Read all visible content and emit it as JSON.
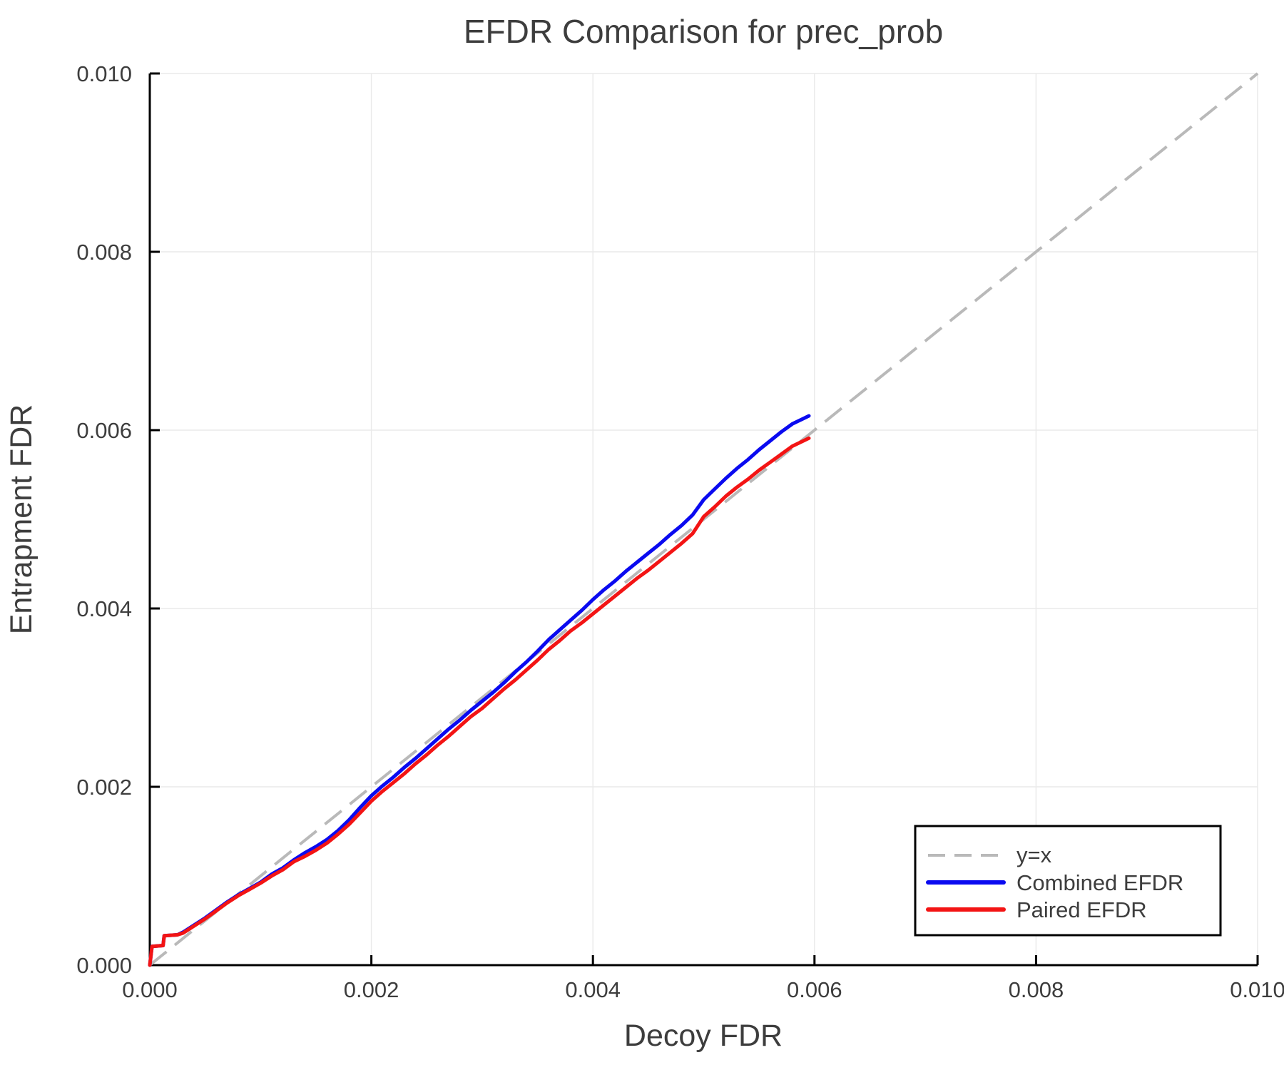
{
  "figure": {
    "title": "EFDR Comparison for prec_prob",
    "xlabel": "Decoy FDR",
    "ylabel": "Entrapment FDR"
  },
  "colors": {
    "text": "#3d3d3d",
    "axis": "#000000",
    "grid": "#eaeaea",
    "background": "#ffffff"
  },
  "chart_data": {
    "type": "line",
    "title": "EFDR Comparison for prec_prob",
    "xlabel": "Decoy FDR",
    "ylabel": "Entrapment FDR",
    "xlim": [
      0,
      0.01
    ],
    "ylim": [
      0,
      0.01
    ],
    "x_ticks": [
      0,
      0.002,
      0.004,
      0.006,
      0.008,
      0.01
    ],
    "y_ticks": [
      0,
      0.002,
      0.004,
      0.006,
      0.008,
      0.01
    ],
    "x_tick_labels": [
      "0.000",
      "0.002",
      "0.004",
      "0.006",
      "0.008",
      "0.010"
    ],
    "y_tick_labels": [
      "0.000",
      "0.002",
      "0.004",
      "0.006",
      "0.008",
      "0.010"
    ],
    "grid": true,
    "legend_position": "bottom-right",
    "reference_line": {
      "label": "y=x",
      "style": "dashed",
      "color": "#b9b9b9",
      "from": [
        0,
        0
      ],
      "to": [
        0.01,
        0.01
      ]
    },
    "series": [
      {
        "name": "Combined EFDR",
        "color": "#0a0af0",
        "points": [
          [
            0.0,
            0.0
          ],
          [
            2e-05,
            0.00021
          ],
          [
            0.00012,
            0.00022
          ],
          [
            0.00013,
            0.00033
          ],
          [
            0.00025,
            0.00034
          ],
          [
            0.0003,
            0.00037
          ],
          [
            0.0004,
            0.00045
          ],
          [
            0.0005,
            0.00053
          ],
          [
            0.0006,
            0.00062
          ],
          [
            0.0007,
            0.00071
          ],
          [
            0.0008,
            0.00079
          ],
          [
            0.0009,
            0.00086
          ],
          [
            0.001,
            0.00093
          ],
          [
            0.0011,
            0.00102
          ],
          [
            0.0012,
            0.00109
          ],
          [
            0.0013,
            0.00118
          ],
          [
            0.0014,
            0.00126
          ],
          [
            0.0015,
            0.00133
          ],
          [
            0.0016,
            0.00141
          ],
          [
            0.0017,
            0.00151
          ],
          [
            0.0018,
            0.00163
          ],
          [
            0.0019,
            0.00177
          ],
          [
            0.002,
            0.0019
          ],
          [
            0.0021,
            0.00201
          ],
          [
            0.0022,
            0.00211
          ],
          [
            0.0023,
            0.00222
          ],
          [
            0.0024,
            0.00232
          ],
          [
            0.0025,
            0.00243
          ],
          [
            0.0026,
            0.00254
          ],
          [
            0.0027,
            0.00265
          ],
          [
            0.0028,
            0.00275
          ],
          [
            0.0029,
            0.00286
          ],
          [
            0.003,
            0.00296
          ],
          [
            0.0031,
            0.00306
          ],
          [
            0.0032,
            0.00317
          ],
          [
            0.0033,
            0.00329
          ],
          [
            0.0034,
            0.0034
          ],
          [
            0.0035,
            0.00352
          ],
          [
            0.0036,
            0.00365
          ],
          [
            0.0037,
            0.00376
          ],
          [
            0.0038,
            0.00387
          ],
          [
            0.0039,
            0.00398
          ],
          [
            0.004,
            0.0041
          ],
          [
            0.0041,
            0.00421
          ],
          [
            0.0042,
            0.00431
          ],
          [
            0.0043,
            0.00442
          ],
          [
            0.0044,
            0.00452
          ],
          [
            0.0045,
            0.00462
          ],
          [
            0.0046,
            0.00472
          ],
          [
            0.0047,
            0.00483
          ],
          [
            0.0048,
            0.00493
          ],
          [
            0.0049,
            0.00505
          ],
          [
            0.005,
            0.00522
          ],
          [
            0.0051,
            0.00534
          ],
          [
            0.0052,
            0.00546
          ],
          [
            0.0053,
            0.00557
          ],
          [
            0.0054,
            0.00567
          ],
          [
            0.0055,
            0.00578
          ],
          [
            0.0056,
            0.00588
          ],
          [
            0.0057,
            0.00598
          ],
          [
            0.0058,
            0.00607
          ],
          [
            0.0059,
            0.00613
          ],
          [
            0.00595,
            0.00616
          ]
        ]
      },
      {
        "name": "Paired EFDR",
        "color": "#f31414",
        "points": [
          [
            0.0,
            0.0
          ],
          [
            2e-05,
            0.00021
          ],
          [
            0.00012,
            0.00022
          ],
          [
            0.00013,
            0.00033
          ],
          [
            0.00025,
            0.00034
          ],
          [
            0.0003,
            0.00036
          ],
          [
            0.0004,
            0.00044
          ],
          [
            0.0005,
            0.00052
          ],
          [
            0.0006,
            0.00061
          ],
          [
            0.0007,
            0.0007
          ],
          [
            0.0008,
            0.00078
          ],
          [
            0.0009,
            0.00085
          ],
          [
            0.001,
            0.00092
          ],
          [
            0.0011,
            0.001
          ],
          [
            0.0012,
            0.00107
          ],
          [
            0.0013,
            0.00116
          ],
          [
            0.0014,
            0.00122
          ],
          [
            0.0015,
            0.00129
          ],
          [
            0.0016,
            0.00137
          ],
          [
            0.0017,
            0.00147
          ],
          [
            0.0018,
            0.00158
          ],
          [
            0.0019,
            0.00171
          ],
          [
            0.002,
            0.00184
          ],
          [
            0.0021,
            0.00195
          ],
          [
            0.0022,
            0.00205
          ],
          [
            0.0023,
            0.00215
          ],
          [
            0.0024,
            0.00226
          ],
          [
            0.0025,
            0.00236
          ],
          [
            0.0026,
            0.00247
          ],
          [
            0.0027,
            0.00257
          ],
          [
            0.0028,
            0.00268
          ],
          [
            0.0029,
            0.00279
          ],
          [
            0.003,
            0.00288
          ],
          [
            0.0031,
            0.00299
          ],
          [
            0.0032,
            0.0031
          ],
          [
            0.0033,
            0.0032
          ],
          [
            0.0034,
            0.00331
          ],
          [
            0.0035,
            0.00342
          ],
          [
            0.0036,
            0.00354
          ],
          [
            0.0037,
            0.00364
          ],
          [
            0.0038,
            0.00375
          ],
          [
            0.0039,
            0.00384
          ],
          [
            0.004,
            0.00394
          ],
          [
            0.0041,
            0.00404
          ],
          [
            0.0042,
            0.00414
          ],
          [
            0.0043,
            0.00424
          ],
          [
            0.0044,
            0.00434
          ],
          [
            0.0045,
            0.00443
          ],
          [
            0.0046,
            0.00453
          ],
          [
            0.0047,
            0.00463
          ],
          [
            0.0048,
            0.00473
          ],
          [
            0.0049,
            0.00484
          ],
          [
            0.005,
            0.00503
          ],
          [
            0.0051,
            0.00514
          ],
          [
            0.0052,
            0.00526
          ],
          [
            0.0053,
            0.00536
          ],
          [
            0.0054,
            0.00545
          ],
          [
            0.0055,
            0.00555
          ],
          [
            0.0056,
            0.00564
          ],
          [
            0.0057,
            0.00573
          ],
          [
            0.0058,
            0.00582
          ],
          [
            0.0059,
            0.00588
          ],
          [
            0.00595,
            0.00591
          ]
        ]
      }
    ]
  },
  "legend": {
    "items": [
      {
        "label": "y=x"
      },
      {
        "label": "Combined EFDR"
      },
      {
        "label": "Paired EFDR"
      }
    ]
  }
}
